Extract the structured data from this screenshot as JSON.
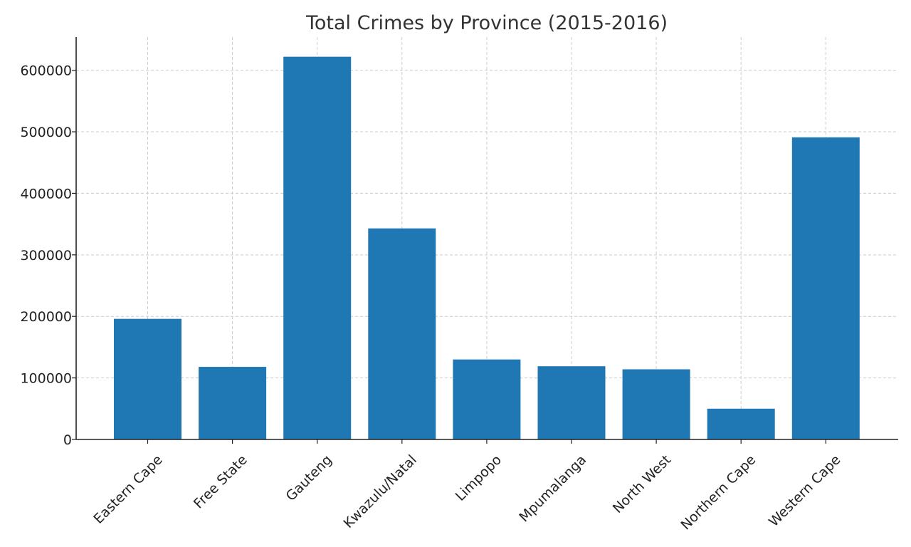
{
  "chart_data": {
    "type": "bar",
    "title": "Total Crimes by Province (2015-2016)",
    "xlabel": "",
    "ylabel": "",
    "categories": [
      "Eastern Cape",
      "Free State",
      "Gauteng",
      "Kwazulu/Natal",
      "Limpopo",
      "Mpumalanga",
      "North West",
      "Northern Cape",
      "Western Cape"
    ],
    "values": [
      196000,
      118000,
      622000,
      343000,
      130000,
      119000,
      114000,
      50000,
      491000
    ],
    "ylim": [
      0,
      654000
    ],
    "yticks": [
      0,
      100000,
      200000,
      300000,
      400000,
      500000,
      600000
    ],
    "ytick_labels": [
      "0",
      "100000",
      "200000",
      "300000",
      "400000",
      "500000",
      "600000"
    ],
    "grid": true,
    "bar_color": "#1f77b4"
  }
}
